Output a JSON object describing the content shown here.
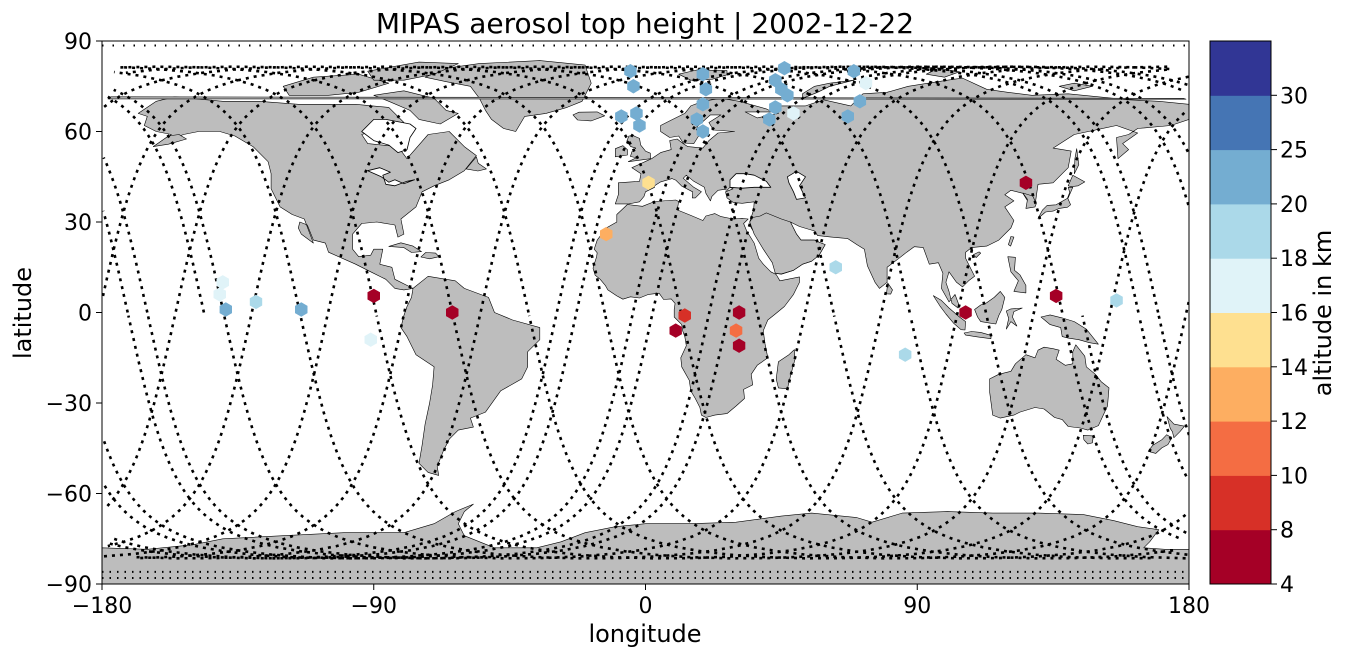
{
  "title": "MIPAS aerosol top height | 2002-12-22",
  "x_axis": {
    "label": "longitude",
    "range": [
      -180,
      180
    ],
    "ticks": [
      -180,
      -90,
      0,
      90,
      180
    ],
    "tick_labels": [
      "−180",
      "−90",
      "0",
      "90",
      "180"
    ]
  },
  "y_axis": {
    "label": "latitude",
    "range": [
      -90,
      90
    ],
    "ticks": [
      90,
      60,
      30,
      0,
      -30,
      -60,
      -90
    ],
    "tick_labels": [
      "90",
      "60",
      "30",
      "0",
      "−30",
      "−60",
      "−90"
    ]
  },
  "colorbar": {
    "label": "altitude in km",
    "levels": [
      4,
      8,
      10,
      12,
      14,
      16,
      18,
      20,
      25,
      30
    ],
    "tick_labels": [
      "4",
      "8",
      "10",
      "12",
      "14",
      "16",
      "18",
      "20",
      "25",
      "30"
    ],
    "colors": [
      "#a50026",
      "#d73027",
      "#f46d43",
      "#fdae61",
      "#fee090",
      "#e0f3f8",
      "#abd9e9",
      "#74add1",
      "#4575b4",
      "#313695"
    ]
  },
  "map_colors": {
    "land": "#bdbdbd",
    "coast": "#000000",
    "ocean": "#ffffff",
    "track": "#000000"
  },
  "chart_data": {
    "type": "scatter",
    "title": "MIPAS aerosol top height | 2002-12-22",
    "xlabel": "longitude",
    "ylabel": "latitude",
    "xlim": [
      -180,
      180
    ],
    "ylim": [
      -90,
      90
    ],
    "color_label": "altitude in km",
    "points": [
      {
        "lon": -140,
        "lat": 10,
        "alt": 17
      },
      {
        "lon": -141,
        "lat": 6,
        "alt": 17
      },
      {
        "lon": -139,
        "lat": 1,
        "alt": 22
      },
      {
        "lon": -129,
        "lat": 3.5,
        "alt": 19
      },
      {
        "lon": -114,
        "lat": 1,
        "alt": 22
      },
      {
        "lon": -90,
        "lat": 5.5,
        "alt": 5
      },
      {
        "lon": -91,
        "lat": -9,
        "alt": 17
      },
      {
        "lon": -64,
        "lat": 0,
        "alt": 5
      },
      {
        "lon": -13,
        "lat": 26,
        "alt": 13
      },
      {
        "lon": 1,
        "lat": 43,
        "alt": 15
      },
      {
        "lon": -5,
        "lat": 80,
        "alt": 22
      },
      {
        "lon": -4,
        "lat": 75,
        "alt": 22
      },
      {
        "lon": -8,
        "lat": 65,
        "alt": 22
      },
      {
        "lon": -3,
        "lat": 66,
        "alt": 22
      },
      {
        "lon": -2,
        "lat": 62,
        "alt": 22
      },
      {
        "lon": 19,
        "lat": 79,
        "alt": 22
      },
      {
        "lon": 20,
        "lat": 74,
        "alt": 22
      },
      {
        "lon": 19,
        "lat": 69,
        "alt": 22
      },
      {
        "lon": 17,
        "lat": 64,
        "alt": 22
      },
      {
        "lon": 19,
        "lat": 60,
        "alt": 22
      },
      {
        "lon": 13,
        "lat": -1,
        "alt": 9
      },
      {
        "lon": 10,
        "lat": -6,
        "alt": 5
      },
      {
        "lon": 31,
        "lat": 0,
        "alt": 5
      },
      {
        "lon": 30,
        "lat": -6,
        "alt": 10
      },
      {
        "lon": 31,
        "lat": -11,
        "alt": 5
      },
      {
        "lon": 43,
        "lat": 77,
        "alt": 22
      },
      {
        "lon": 46,
        "lat": 81,
        "alt": 22
      },
      {
        "lon": 45,
        "lat": 74,
        "alt": 22
      },
      {
        "lon": 47,
        "lat": 72,
        "alt": 22
      },
      {
        "lon": 43,
        "lat": 68,
        "alt": 22
      },
      {
        "lon": 41,
        "lat": 64,
        "alt": 22
      },
      {
        "lon": 49,
        "lat": 66,
        "alt": 17
      },
      {
        "lon": 69,
        "lat": 80,
        "alt": 22
      },
      {
        "lon": 73,
        "lat": 76,
        "alt": 17
      },
      {
        "lon": 71,
        "lat": 70,
        "alt": 22
      },
      {
        "lon": 67,
        "lat": 65,
        "alt": 22
      },
      {
        "lon": 63,
        "lat": 15,
        "alt": 19
      },
      {
        "lon": 86,
        "lat": -14,
        "alt": 19
      },
      {
        "lon": 106,
        "lat": 0,
        "alt": 5
      },
      {
        "lon": 126,
        "lat": 43,
        "alt": 5
      },
      {
        "lon": 136,
        "lat": 5.5,
        "alt": 5
      },
      {
        "lon": 156,
        "lat": 4,
        "alt": 19
      }
    ]
  }
}
